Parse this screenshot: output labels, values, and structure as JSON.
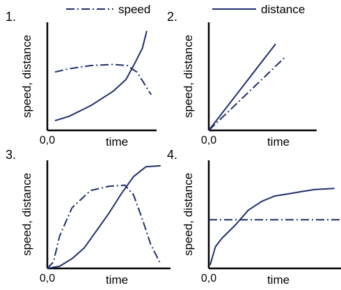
{
  "legend": {
    "position": "top",
    "entries": [
      {
        "label": "speed",
        "style": "dash-dot"
      },
      {
        "label": "distance",
        "style": "solid"
      }
    ]
  },
  "line_color": "#1f2f6b",
  "axis_color": "#000000",
  "chart_data": [
    {
      "type": "line",
      "panel_label": "1.",
      "xlabel": "time",
      "ylabel": "speed, distance",
      "origin_label": "0,0",
      "grid": false,
      "xlim": [
        0,
        10
      ],
      "ylim": [
        0,
        10
      ],
      "series": [
        {
          "name": "speed",
          "style": "dash-dot",
          "x": [
            0.7,
            2,
            4,
            6,
            7.3,
            8.2,
            8.7,
            9.5
          ],
          "y": [
            5.4,
            5.7,
            6.0,
            6.1,
            6.0,
            5.4,
            4.6,
            3.3
          ]
        },
        {
          "name": "distance",
          "style": "solid",
          "x": [
            0.7,
            2,
            4,
            6,
            7.2,
            8,
            8.7,
            9.1
          ],
          "y": [
            0.9,
            1.3,
            2.3,
            3.6,
            4.7,
            6.2,
            7.6,
            9.2
          ]
        }
      ]
    },
    {
      "type": "line",
      "panel_label": "2.",
      "xlabel": "time",
      "ylabel": "speed, distance",
      "origin_label": "0,0",
      "grid": false,
      "xlim": [
        0,
        10
      ],
      "ylim": [
        0,
        10
      ],
      "series": [
        {
          "name": "speed",
          "style": "dash-dot",
          "x": [
            0,
            7
          ],
          "y": [
            0,
            6.7
          ]
        },
        {
          "name": "distance",
          "style": "solid",
          "x": [
            0,
            6.2
          ],
          "y": [
            0,
            8.0
          ]
        }
      ]
    },
    {
      "type": "line",
      "panel_label": "3.",
      "xlabel": "time",
      "ylabel": "speed, distance",
      "origin_label": "0,0",
      "grid": false,
      "xlim": [
        0,
        10
      ],
      "ylim": [
        0,
        10
      ],
      "series": [
        {
          "name": "speed",
          "style": "dash-dot",
          "x": [
            0,
            0.5,
            1,
            2,
            3.5,
            5,
            6.3,
            7,
            7.7,
            8.4,
            9.2
          ],
          "y": [
            0,
            0.6,
            3.0,
            5.6,
            7.2,
            7.6,
            7.7,
            6.8,
            4.6,
            2.2,
            0.4
          ]
        },
        {
          "name": "distance",
          "style": "solid",
          "x": [
            0,
            1,
            2,
            3,
            4,
            5,
            6,
            7,
            8,
            9.2
          ],
          "y": [
            0,
            0.2,
            0.9,
            1.9,
            3.5,
            5.1,
            6.9,
            8.5,
            9.4,
            9.5
          ]
        }
      ]
    },
    {
      "type": "line",
      "panel_label": "4.",
      "xlabel": "time",
      "ylabel": "speed, distance",
      "origin_label": "0,0",
      "grid": false,
      "xlim": [
        0,
        10
      ],
      "ylim": [
        0,
        10
      ],
      "series": [
        {
          "name": "speed",
          "style": "dash-dot",
          "x": [
            0,
            10
          ],
          "y": [
            4.5,
            4.5
          ]
        },
        {
          "name": "distance",
          "style": "solid",
          "x": [
            0.1,
            0.5,
            1,
            2,
            3,
            4,
            5,
            6,
            7,
            8,
            9.5
          ],
          "y": [
            0.3,
            2.0,
            2.8,
            4.0,
            5.4,
            6.2,
            6.7,
            6.9,
            7.1,
            7.3,
            7.4
          ]
        }
      ]
    }
  ]
}
